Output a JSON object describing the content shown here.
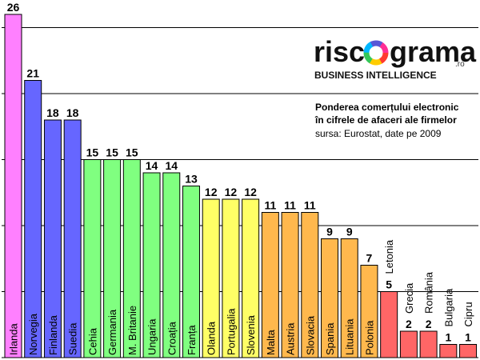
{
  "brand": {
    "name_left": "risc",
    "name_right": "grama",
    "tld": ".ro",
    "tagline": "BUSINESS INTELLIGENCE"
  },
  "note": {
    "line1": "Ponderea comerțului electronic",
    "line2": "în cifrele de afaceri ale firmelor",
    "source": "sursa: Eurostat, date pe 2009"
  },
  "chart_data": {
    "type": "bar",
    "title": "",
    "xlabel": "",
    "ylabel": "",
    "ylim": [
      0,
      26
    ],
    "grid": true,
    "categories": [
      "Irlanda",
      "Norvegia",
      "Finlanda",
      "Suedia",
      "Cehia",
      "Germania",
      "M. Britanie",
      "Ungaria",
      "Croația",
      "Franța",
      "Olanda",
      "Portugalia",
      "Slovenia",
      "Malta",
      "Austria",
      "Slovacia",
      "Spania",
      "Lituania",
      "Polonia",
      "Letonia",
      "Grecia",
      "România",
      "Bulgaria",
      "Cipru"
    ],
    "values": [
      26,
      21,
      18,
      18,
      15,
      15,
      15,
      14,
      14,
      13,
      12,
      12,
      12,
      11,
      11,
      11,
      9,
      9,
      7,
      5,
      2,
      2,
      1,
      1
    ],
    "bar_colors": [
      "#ff80ff",
      "#6666ff",
      "#6666ff",
      "#6666ff",
      "#80ff80",
      "#80ff80",
      "#80ff80",
      "#80ff80",
      "#80ff80",
      "#80ff80",
      "#ffff66",
      "#ffff66",
      "#ffff66",
      "#ffb84d",
      "#ffb84d",
      "#ffb84d",
      "#ffb84d",
      "#ffb84d",
      "#ffb84d",
      "#ff6666",
      "#ff6666",
      "#ff6666",
      "#ff6666",
      "#ff6666"
    ]
  }
}
